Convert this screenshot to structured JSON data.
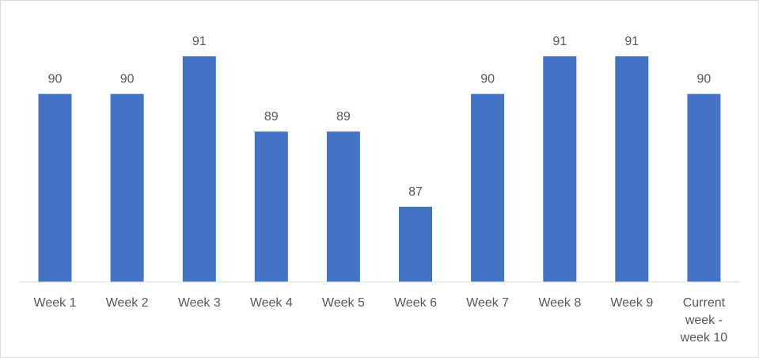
{
  "chart_data": {
    "type": "bar",
    "categories": [
      "Week 1",
      "Week 2",
      "Week 3",
      "Week 4",
      "Week 5",
      "Week 6",
      "Week 7",
      "Week 8",
      "Week 9",
      "Current week - week 10"
    ],
    "category_lines": [
      [
        "Week 1"
      ],
      [
        "Week 2"
      ],
      [
        "Week 3"
      ],
      [
        "Week 4"
      ],
      [
        "Week 5"
      ],
      [
        "Week 6"
      ],
      [
        "Week 7"
      ],
      [
        "Week 8"
      ],
      [
        "Week 9"
      ],
      [
        "Current",
        "week -",
        "week 10"
      ]
    ],
    "values": [
      90,
      90,
      91,
      89,
      89,
      87,
      90,
      91,
      91,
      90
    ],
    "data_labels": [
      "90",
      "90",
      "91",
      "89",
      "89",
      "87",
      "90",
      "91",
      "91",
      "90"
    ],
    "title": "",
    "xlabel": "",
    "ylabel": "",
    "ylim": [
      85,
      91.55
    ],
    "grid": false,
    "legend": "none",
    "bar_color": "#4472c4",
    "axis_color": "#d9d9d9",
    "text_color": "#595959"
  }
}
